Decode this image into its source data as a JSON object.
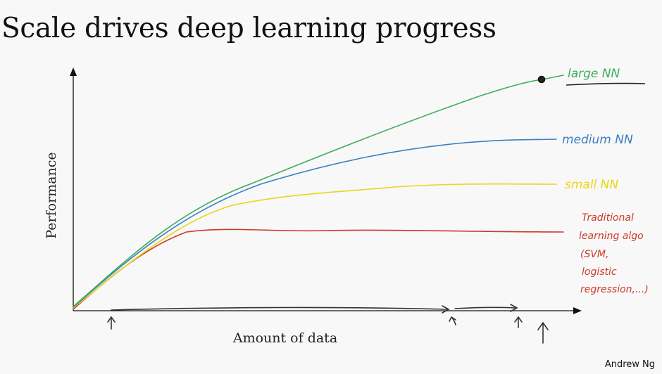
{
  "slide": {
    "title": "Scale drives deep learning progress",
    "author": "Andrew Ng"
  },
  "axes": {
    "x_label": "Amount of data",
    "y_label": "Performance"
  },
  "curves": [
    {
      "label": "large NN",
      "color": "#3cae5c",
      "shape": "keeps rising with more data"
    },
    {
      "label": "medium NN",
      "color": "#3c7fc2",
      "shape": "rises, plateaus at medium-high level"
    },
    {
      "label": "small NN",
      "color": "#e8d61a",
      "shape": "rises, plateaus at medium level"
    },
    {
      "label_lines": [
        "Traditional",
        "learning algo",
        "(SVM,",
        "logistic",
        "regression,...)"
      ],
      "color": "#cc3a2a",
      "shape": "rises quickly, plateaus early at low level"
    }
  ],
  "annotations": {
    "data_range_arrow_color": "#333333",
    "x_tick_arrows": 4,
    "large_nn_marker_icon": "dot-icon"
  }
}
